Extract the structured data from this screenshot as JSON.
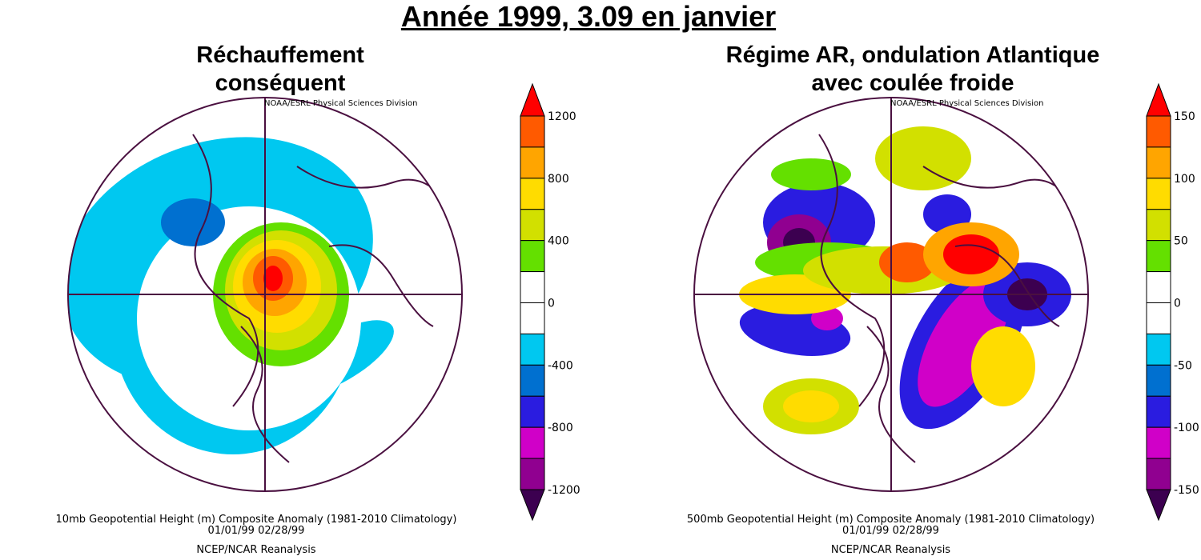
{
  "title": "Année 1999, 3.09 en janvier",
  "panels": [
    {
      "subtitle_lines": [
        "Réchauffement",
        "conséquent"
      ],
      "credit": "NOAA/ESRL Physical Sciences Division",
      "caption": "10mb Geopotential Height (m) Composite Anomaly (1981-2010 Climatology)",
      "dates": "01/01/99 02/28/99",
      "source": "NCEP/NCAR Reanalysis",
      "colorbar": {
        "ticks": [
          "1200",
          "800",
          "400",
          "0",
          "-400",
          "-800",
          "-1200"
        ],
        "min": -1200,
        "max": 1200,
        "step": 200
      }
    },
    {
      "subtitle_lines": [
        "Régime AR, ondulation Atlantique",
        "avec coulée froide"
      ],
      "credit": "NOAA/ESRL Physical Sciences Division",
      "caption": "500mb Geopotential Height (m) Composite Anomaly (1981-2010 Climatology)",
      "dates": "01/01/99 02/28/99",
      "source": "NCEP/NCAR Reanalysis",
      "colorbar": {
        "ticks": [
          "150",
          "100",
          "50",
          "0",
          "-50",
          "-100",
          "-150"
        ],
        "min": -150,
        "max": 150,
        "step": 25
      }
    }
  ],
  "palette": [
    "#ff0000",
    "#ff5a00",
    "#ffa500",
    "#ffdc00",
    "#d2e000",
    "#64e000",
    "#ffffff",
    "#ffffff",
    "#00c8f0",
    "#0070d0",
    "#2a1ce0",
    "#d000c8",
    "#900090",
    "#3c0050"
  ]
}
